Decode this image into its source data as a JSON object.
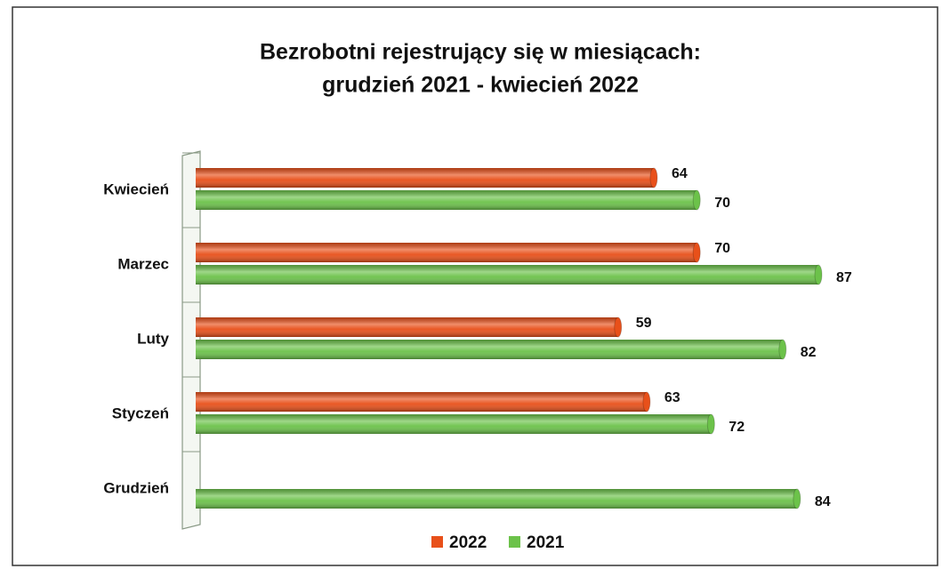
{
  "chart_data": {
    "type": "bar",
    "orientation": "horizontal",
    "title": "Bezrobotni rejestrujący się w miesiącach:",
    "subtitle": "grudzień 2021 - kwiecień 2022",
    "categories": [
      "Kwiecień",
      "Marzec",
      "Luty",
      "Styczeń",
      "Grudzień"
    ],
    "series": [
      {
        "name": "2022",
        "color": "#e8501a",
        "values": [
          64,
          70,
          59,
          63,
          null
        ]
      },
      {
        "name": "2021",
        "color": "#6cc24a",
        "values": [
          70,
          87,
          82,
          72,
          84
        ]
      }
    ],
    "legend": "bottom"
  }
}
